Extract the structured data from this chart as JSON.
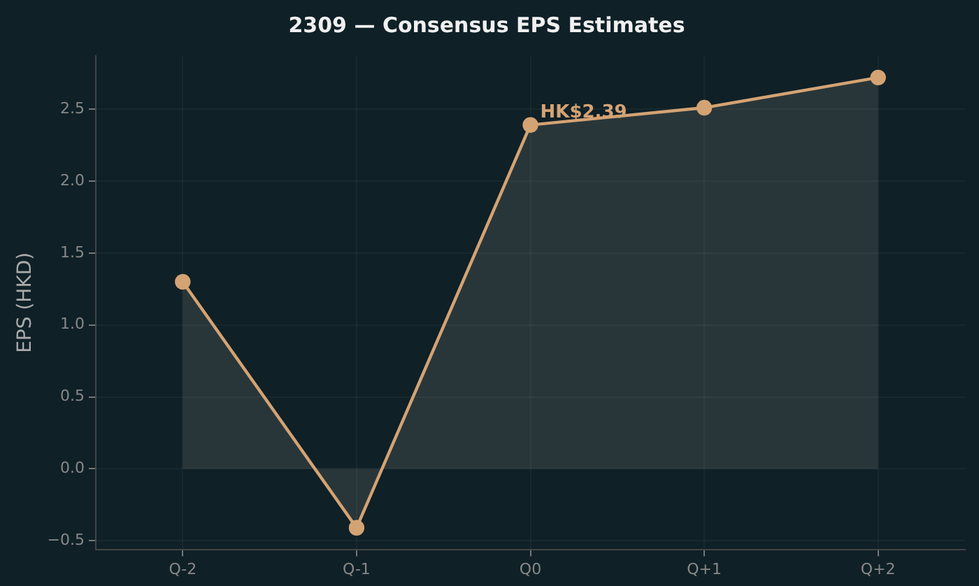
{
  "chart_data": {
    "type": "area",
    "title": "2309 — Consensus EPS Estimates",
    "ylabel": "EPS (HKD)",
    "categories": [
      "Q-2",
      "Q-1",
      "Q0",
      "Q+1",
      "Q+2"
    ],
    "series": [
      {
        "color": "#d4a373",
        "values": [
          1.3,
          -0.41,
          2.39,
          2.51,
          2.72
        ]
      }
    ],
    "ylim": [
      -0.56,
      2.87
    ],
    "yticks": [
      {
        "value": -0.5,
        "label": "−0.5"
      },
      {
        "value": 0,
        "label": "0.0"
      },
      {
        "value": 0.5,
        "label": "0.5"
      },
      {
        "value": 1,
        "label": "1.0"
      },
      {
        "value": 1.5,
        "label": "1.5"
      },
      {
        "value": 2,
        "label": "2.0"
      },
      {
        "value": 2.5,
        "label": "2.5"
      }
    ],
    "annotations": [
      {
        "text": "HK$2.39",
        "x": "Q0",
        "y": 2.39
      }
    ],
    "grid": true,
    "marker": "circle",
    "line_style": "solid",
    "legend": false
  }
}
